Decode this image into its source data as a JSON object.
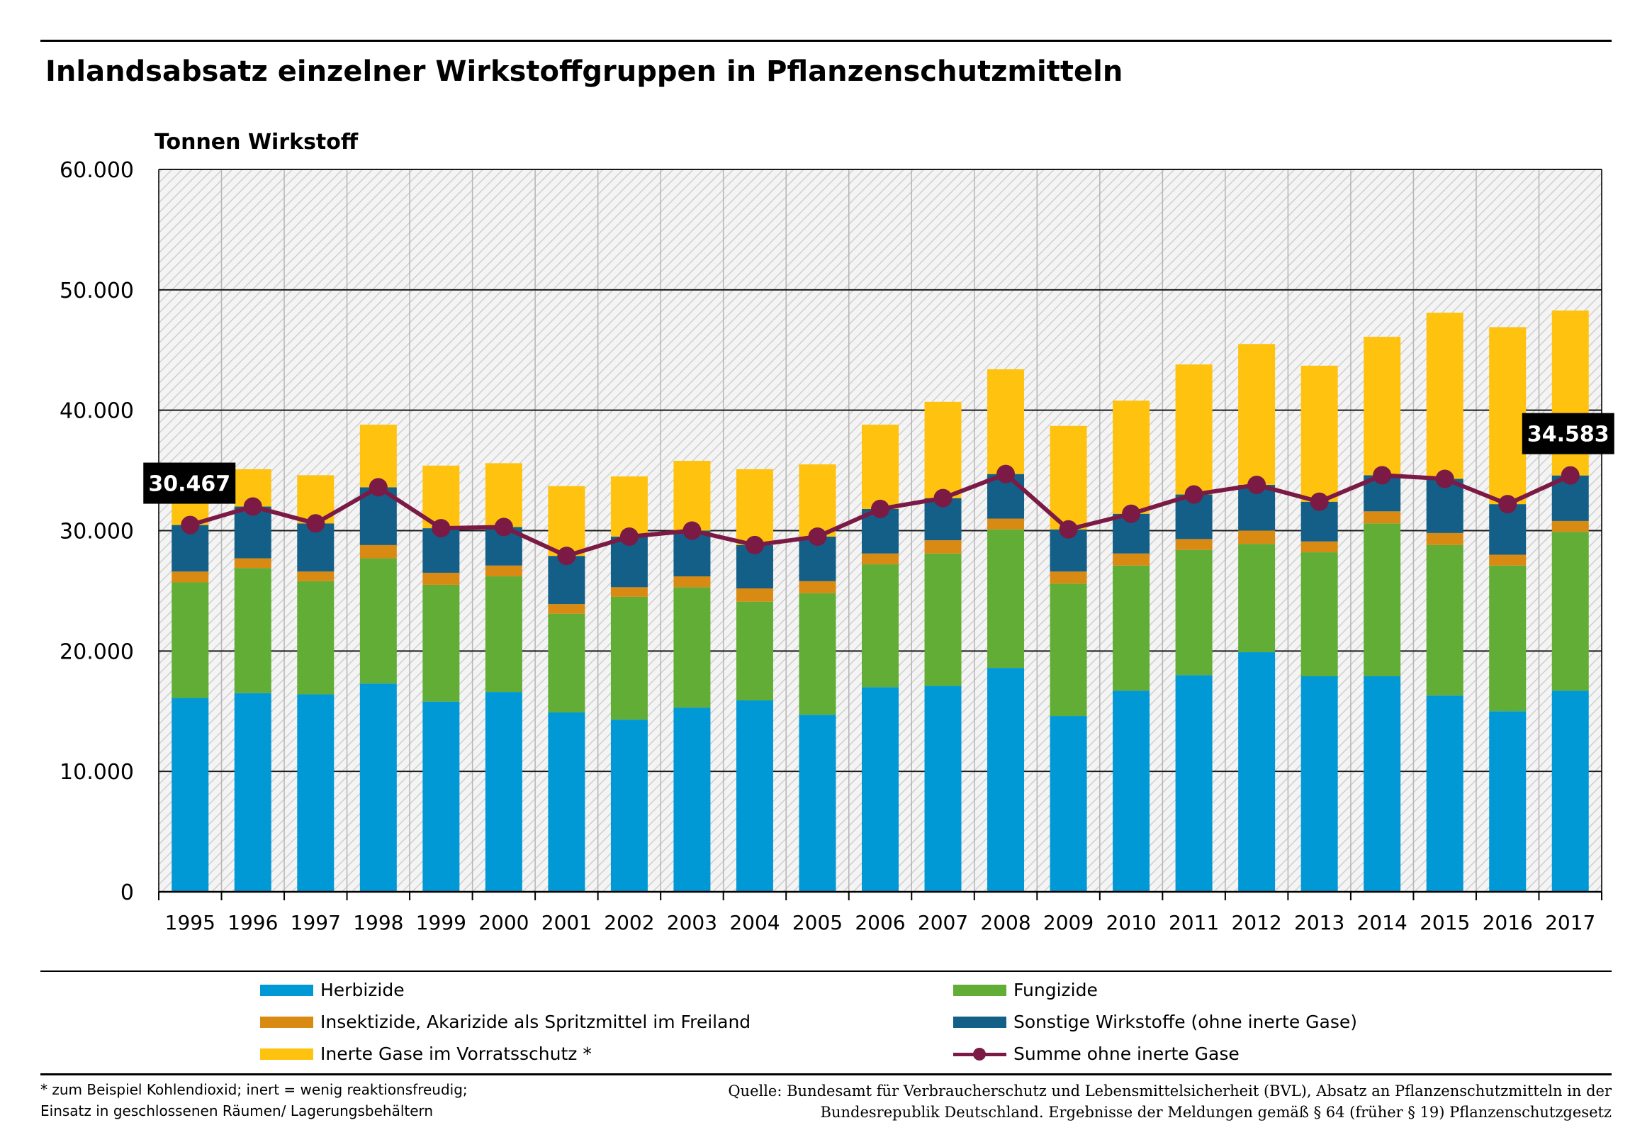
{
  "title": "Inlandsabsatz einzelner Wirkstoffgruppen in Pflanzenschutzmitteln",
  "colors": {
    "herbizide": "#0099d6",
    "fungizide": "#62ad36",
    "insektizide": "#d98a12",
    "sonstige": "#135f87",
    "inerte": "#ffc20e",
    "summe": "#7b1a45"
  },
  "legend": {
    "herbizide": "Herbizide",
    "fungizide": "Fungizide",
    "insektizide": "Insektizide, Akarizide als Spritzmittel im Freiland",
    "sonstige": "Sonstige  Wirkstoffe (ohne inerte Gase)",
    "inerte": "Inerte Gase im Vorratsschutz *",
    "summe": "Summe ohne inerte Gase"
  },
  "footnote": {
    "line1": "* zum Beispiel Kohlendioxid; inert = wenig reaktionsfreudig;",
    "line2": "Einsatz in geschlossenen Räumen/ Lagerungsbehältern"
  },
  "source": {
    "line1": "Quelle: Bundesamt für Verbraucherschutz und Lebensmittelsicherheit (BVL), Absatz an Pflanzenschutzmitteln in der",
    "line2": "Bundesrepublik Deutschland. Ergebnisse der Meldungen gemäß § 64 (früher § 19) Pflanzenschutzgesetz"
  },
  "chart_data": {
    "type": "bar",
    "stacked": true,
    "ylabel": "Tonnen Wirkstoff",
    "ylim": [
      0,
      60000
    ],
    "yticks": [
      0,
      10000,
      20000,
      30000,
      40000,
      50000,
      60000
    ],
    "ytick_labels": [
      "0",
      "10.000",
      "20.000",
      "30.000",
      "40.000",
      "50.000",
      "60.000"
    ],
    "categories": [
      "1995",
      "1996",
      "1997",
      "1998",
      "1999",
      "2000",
      "2001",
      "2002",
      "2003",
      "2004",
      "2005",
      "2006",
      "2007",
      "2008",
      "2009",
      "2010",
      "2011",
      "2012",
      "2013",
      "2014",
      "2015",
      "2016",
      "2017"
    ],
    "series": [
      {
        "key": "herbizide",
        "name": "Herbizide",
        "values": [
          16100,
          16500,
          16400,
          17300,
          15800,
          16600,
          14900,
          14300,
          15300,
          15900,
          14700,
          17000,
          17100,
          18600,
          14600,
          16700,
          18000,
          19900,
          17900,
          17900,
          16300,
          15000,
          16700
        ]
      },
      {
        "key": "fungizide",
        "name": "Fungizide",
        "values": [
          9600,
          10400,
          9400,
          10400,
          9700,
          9600,
          8200,
          10200,
          10000,
          8200,
          10100,
          10200,
          11000,
          11500,
          11000,
          10400,
          10400,
          9000,
          10300,
          12700,
          12500,
          12100,
          13200
        ]
      },
      {
        "key": "insektizide",
        "name": "Insektizide, Akarizide als Spritzmittel im Freiland",
        "values": [
          900,
          800,
          800,
          1100,
          1000,
          900,
          800,
          800,
          900,
          1100,
          1000,
          900,
          1100,
          900,
          1000,
          1000,
          900,
          1100,
          900,
          1000,
          1000,
          900,
          900
        ]
      },
      {
        "key": "sonstige",
        "name": "Sonstige  Wirkstoffe (ohne inerte Gase)",
        "values": [
          3867,
          4300,
          4000,
          4800,
          3700,
          3200,
          4000,
          4200,
          3800,
          3600,
          3700,
          3700,
          3500,
          3700,
          3500,
          3300,
          3700,
          3800,
          3300,
          3000,
          4500,
          4200,
          3783
        ]
      },
      {
        "key": "inerte",
        "name": "Inerte Gase im Vorratsschutz *",
        "values": [
          2000,
          3100,
          4000,
          5200,
          5200,
          5300,
          5800,
          5000,
          5800,
          6300,
          6000,
          7000,
          8000,
          8700,
          8600,
          9400,
          10800,
          11700,
          11300,
          11500,
          13800,
          14700,
          13700
        ]
      }
    ],
    "line": {
      "name": "Summe ohne inerte Gase",
      "values": [
        30467,
        32000,
        30600,
        33600,
        30200,
        30300,
        27900,
        29500,
        30000,
        28800,
        29500,
        31800,
        32700,
        34700,
        30100,
        31400,
        33000,
        33800,
        32400,
        34600,
        34300,
        32200,
        34583
      ]
    },
    "annotations": [
      {
        "index": 0,
        "label": "30.467"
      },
      {
        "index": 22,
        "label": "34.583"
      }
    ]
  }
}
